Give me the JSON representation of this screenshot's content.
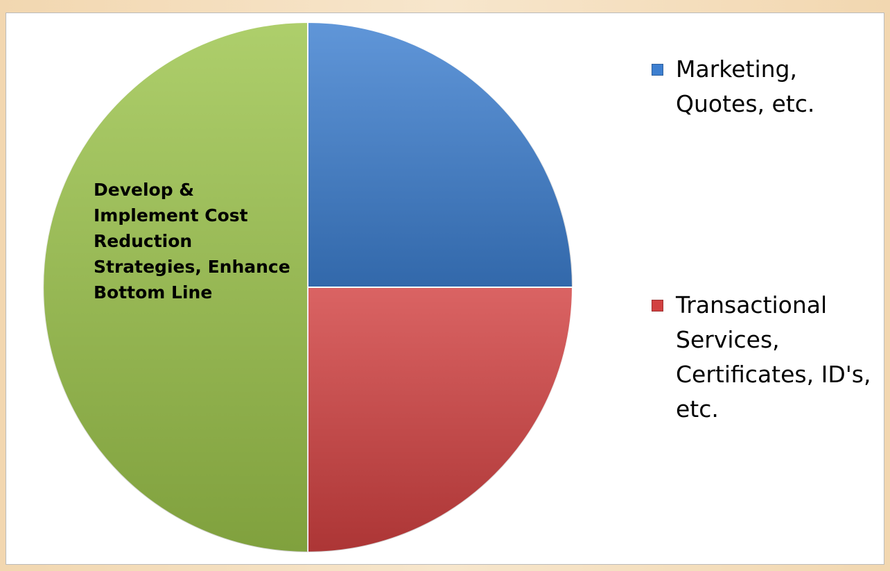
{
  "chart_data": {
    "type": "pie",
    "categories": [
      "Marketing, Quotes, etc.",
      "Transactional Services, Certificates, ID's, etc.",
      null
    ],
    "values": [
      25,
      25,
      50
    ],
    "colors": [
      "#3d7fd0",
      "#d24141",
      "#9cc44b"
    ],
    "slice_labels": [
      null,
      null,
      "Develop & Implement Cost Reduction Strategies, Enhance Bottom Line"
    ],
    "legend": "right"
  }
}
